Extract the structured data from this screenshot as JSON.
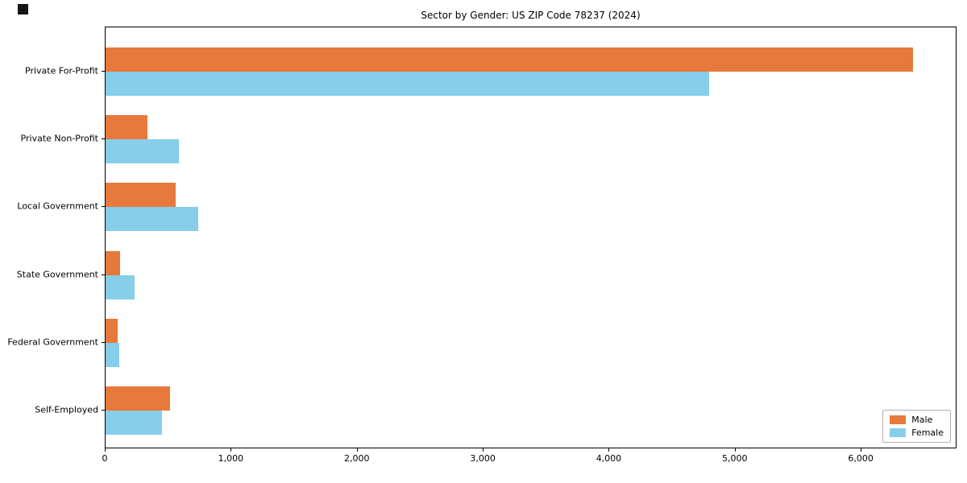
{
  "chart_data": {
    "type": "bar",
    "orientation": "horizontal",
    "title": "Sector by Gender: US ZIP Code 78237 (2024)",
    "categories": [
      "Private For-Profit",
      "Private Non-Profit",
      "Local Government",
      "State Government",
      "Federal Government",
      "Self-Employed"
    ],
    "series": [
      {
        "name": "Male",
        "color": "#e6793b",
        "values": [
          6420,
          330,
          560,
          115,
          95,
          510
        ]
      },
      {
        "name": "Female",
        "color": "#87ceeb",
        "values": [
          4800,
          580,
          740,
          230,
          110,
          450
        ]
      }
    ],
    "xlim": [
      0,
      6760
    ],
    "xticks": [
      0,
      1000,
      2000,
      3000,
      4000,
      5000,
      6000
    ],
    "xtick_labels": [
      "0",
      "1,000",
      "2,000",
      "3,000",
      "4,000",
      "5,000",
      "6,000"
    ],
    "ylabel": "",
    "xlabel": "",
    "grid": false,
    "legend": {
      "position": "lower right",
      "entries": [
        "Male",
        "Female"
      ]
    },
    "axis_color": "#000000",
    "background_color": "#ffffff"
  }
}
